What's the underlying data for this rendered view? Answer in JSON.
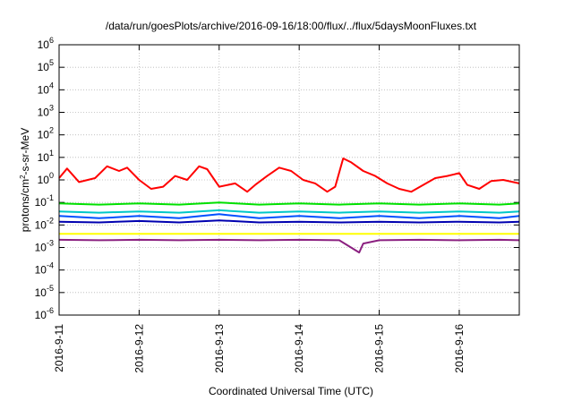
{
  "chart_data": {
    "type": "line",
    "title": "/data/run/goesPlots/archive/2016-09-16/18:00/flux/../flux/5daysMoonFluxes.txt",
    "xlabel": "Coordinated Universal Time (UTC)",
    "ylabel": {
      "prefix": "protons/cm",
      "sup": "2",
      "suffix": "-s-sr-MeV"
    },
    "yscale": "log",
    "ylim_exp": [
      -6,
      6
    ],
    "yticks": [
      {
        "base": "10",
        "exp": "-6"
      },
      {
        "base": "10",
        "exp": "-5"
      },
      {
        "base": "10",
        "exp": "-4"
      },
      {
        "base": "10",
        "exp": "-3"
      },
      {
        "base": "10",
        "exp": "-2"
      },
      {
        "base": "10",
        "exp": "-1"
      },
      {
        "base": "10",
        "exp": "0"
      },
      {
        "base": "10",
        "exp": "1"
      },
      {
        "base": "10",
        "exp": "2"
      },
      {
        "base": "10",
        "exp": "3"
      },
      {
        "base": "10",
        "exp": "4"
      },
      {
        "base": "10",
        "exp": "5"
      },
      {
        "base": "10",
        "exp": "6"
      }
    ],
    "xlim_days": [
      0,
      5.75
    ],
    "xticks": [
      "2016-9-11",
      "2016-9-12",
      "2016-9-13",
      "2016-9-14",
      "2016-9-15",
      "2016-9-16"
    ],
    "grid": true,
    "series": [
      {
        "color": "#ff0000",
        "x": [
          0.0,
          0.1,
          0.25,
          0.45,
          0.6,
          0.75,
          0.85,
          1.0,
          1.15,
          1.3,
          1.45,
          1.6,
          1.75,
          1.85,
          2.0,
          2.2,
          2.35,
          2.45,
          2.6,
          2.75,
          2.9,
          3.05,
          3.2,
          3.35,
          3.45,
          3.55,
          3.65,
          3.8,
          3.95,
          4.1,
          4.25,
          4.4,
          4.55,
          4.7,
          4.85,
          5.0,
          5.1,
          5.25,
          5.4,
          5.55,
          5.75
        ],
        "y": [
          1.2,
          3.2,
          0.8,
          1.2,
          4.0,
          2.5,
          3.5,
          1.0,
          0.4,
          0.5,
          1.5,
          1.0,
          4.0,
          3.0,
          0.5,
          0.7,
          0.3,
          0.6,
          1.5,
          3.5,
          2.5,
          1.0,
          0.7,
          0.3,
          0.5,
          9.0,
          6.0,
          2.5,
          1.5,
          0.7,
          0.4,
          0.3,
          0.6,
          1.2,
          1.5,
          2.0,
          0.6,
          0.4,
          0.9,
          1.0,
          0.7
        ]
      },
      {
        "color": "#00e000",
        "x": [
          0.0,
          0.5,
          1.0,
          1.5,
          2.0,
          2.5,
          3.0,
          3.5,
          4.0,
          4.5,
          5.0,
          5.5,
          5.75
        ],
        "y": [
          0.09,
          0.08,
          0.09,
          0.08,
          0.1,
          0.08,
          0.09,
          0.08,
          0.09,
          0.08,
          0.09,
          0.08,
          0.09
        ]
      },
      {
        "color": "#00c8c8",
        "x": [
          0.0,
          0.5,
          1.0,
          1.5,
          2.0,
          2.5,
          3.0,
          3.5,
          4.0,
          4.5,
          5.0,
          5.5,
          5.75
        ],
        "y": [
          0.04,
          0.035,
          0.04,
          0.035,
          0.045,
          0.035,
          0.04,
          0.035,
          0.04,
          0.035,
          0.04,
          0.035,
          0.04
        ]
      },
      {
        "color": "#0050ff",
        "x": [
          0.0,
          0.5,
          1.0,
          1.5,
          2.0,
          2.5,
          3.0,
          3.5,
          4.0,
          4.5,
          5.0,
          5.5,
          5.75
        ],
        "y": [
          0.025,
          0.02,
          0.025,
          0.02,
          0.03,
          0.02,
          0.025,
          0.02,
          0.025,
          0.02,
          0.025,
          0.02,
          0.025
        ]
      },
      {
        "color": "#0000b0",
        "x": [
          0.0,
          0.5,
          1.0,
          1.5,
          2.0,
          2.5,
          3.0,
          3.5,
          4.0,
          4.5,
          5.0,
          5.5,
          5.75
        ],
        "y": [
          0.014,
          0.013,
          0.015,
          0.013,
          0.016,
          0.013,
          0.014,
          0.013,
          0.014,
          0.013,
          0.014,
          0.013,
          0.014
        ]
      },
      {
        "color": "#ffff00",
        "x": [
          0.0,
          1.0,
          2.0,
          3.0,
          4.0,
          5.0,
          5.75
        ],
        "y": [
          0.004,
          0.004,
          0.004,
          0.004,
          0.004,
          0.004,
          0.004
        ]
      },
      {
        "color": "#8b2080",
        "x": [
          0.0,
          0.5,
          1.0,
          1.5,
          2.0,
          2.5,
          3.0,
          3.5,
          3.75,
          3.8,
          4.0,
          4.5,
          5.0,
          5.5,
          5.75
        ],
        "y": [
          0.0022,
          0.0021,
          0.0022,
          0.0021,
          0.0022,
          0.0021,
          0.0022,
          0.0021,
          0.0006,
          0.0015,
          0.0021,
          0.0022,
          0.0021,
          0.0022,
          0.0021
        ]
      }
    ]
  }
}
